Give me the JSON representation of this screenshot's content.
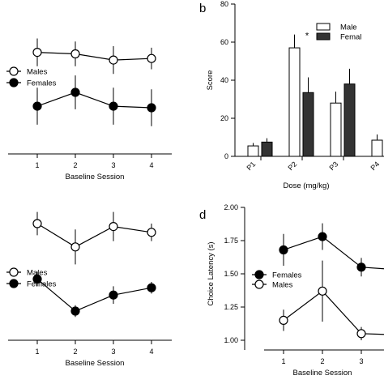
{
  "chart_data": [
    {
      "panel": "",
      "type": "line",
      "xlabel": "Baseline Session",
      "ylabel": "",
      "x": [
        1,
        2,
        3,
        4
      ],
      "xticks": [
        "1",
        "2",
        "3",
        "4"
      ],
      "legend_position": "left",
      "series": [
        {
          "name": "Males",
          "marker": "open",
          "values": [
            0.66,
            0.65,
            0.61,
            0.62
          ],
          "err": [
            0.09,
            0.08,
            0.09,
            0.07
          ]
        },
        {
          "name": "Females",
          "marker": "filled",
          "values": [
            0.31,
            0.4,
            0.31,
            0.3
          ],
          "err": [
            0.12,
            0.11,
            0.12,
            0.12
          ]
        }
      ]
    },
    {
      "panel": "b",
      "type": "bar",
      "xlabel": "Dose (mg/kg)",
      "ylabel": "Score",
      "ylim": [
        0,
        80
      ],
      "yticks": [
        "0",
        "20",
        "40",
        "60",
        "80"
      ],
      "categories": [
        "P1",
        "P2",
        "P3",
        "P4"
      ],
      "legend_position": "top-right",
      "annotation": {
        "text": "*",
        "category": "P2"
      },
      "series": [
        {
          "name": "Males",
          "legend_text": "Male",
          "fill": "#ffffff",
          "values": [
            5.5,
            57,
            28,
            8.5
          ],
          "err": [
            1.5,
            7,
            6,
            3
          ]
        },
        {
          "name": "Females",
          "legend_text": "Femal",
          "fill": "#333333",
          "values": [
            7.5,
            33.5,
            38,
            null
          ],
          "err": [
            2,
            8,
            8,
            null
          ]
        }
      ]
    },
    {
      "panel": "",
      "type": "line",
      "xlabel": "Baseline Session",
      "ylabel": "",
      "x": [
        1,
        2,
        3,
        4
      ],
      "xticks": [
        "1",
        "2",
        "3",
        "4"
      ],
      "legend_position": "left",
      "series": [
        {
          "name": "Males",
          "marker": "open",
          "values": [
            0.8,
            0.64,
            0.78,
            0.74
          ],
          "err": [
            0.08,
            0.12,
            0.1,
            0.06
          ]
        },
        {
          "name": "Females",
          "marker": "filled",
          "values": [
            0.42,
            0.2,
            0.31,
            0.36
          ],
          "err": [
            0.05,
            0.04,
            0.06,
            0.04
          ]
        }
      ]
    },
    {
      "panel": "d",
      "type": "line",
      "xlabel": "Baseline Session",
      "ylabel": "Choice Latency (s)",
      "ylim": [
        1.0,
        2.0
      ],
      "yticks": [
        "1.00",
        "1.25",
        "1.50",
        "1.75",
        "2.00"
      ],
      "x": [
        1,
        2,
        3,
        4
      ],
      "xticks": [
        "1",
        "2",
        "3"
      ],
      "legend_position": "middle-left",
      "series": [
        {
          "name": "Females",
          "marker": "filled",
          "values": [
            1.68,
            1.78,
            1.55,
            1.53
          ],
          "err": [
            0.12,
            0.1,
            0.07,
            null
          ]
        },
        {
          "name": "Males",
          "marker": "open",
          "values": [
            1.15,
            1.37,
            1.05,
            1.04
          ],
          "err": [
            0.08,
            0.23,
            0.05,
            null
          ]
        }
      ]
    }
  ]
}
